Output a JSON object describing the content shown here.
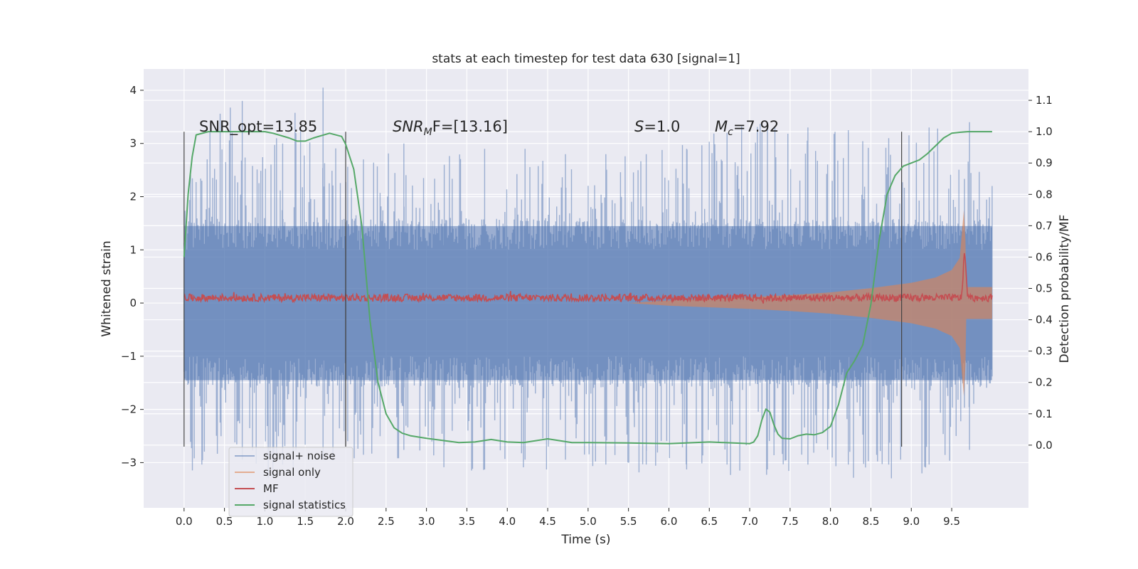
{
  "chart_data": {
    "type": "line",
    "title": "stats at each timestep for test data 630 [signal=1]",
    "xlabel": "Time (s)",
    "ylabel": "Whitened strain",
    "y2label": "Detection probability/MF",
    "xlim": [
      -0.5,
      10.45
    ],
    "ylim": [
      -3.85,
      4.4
    ],
    "y2lim": [
      -0.2,
      1.2
    ],
    "x_ticks": [
      "0.0",
      "0.5",
      "1.0",
      "1.5",
      "2.0",
      "2.5",
      "3.0",
      "3.5",
      "4.0",
      "4.5",
      "5.0",
      "5.5",
      "6.0",
      "6.5",
      "7.0",
      "7.5",
      "8.0",
      "8.5",
      "9.0",
      "9.5"
    ],
    "y_ticks": [
      "4",
      "3",
      "2",
      "1",
      "0",
      "−1",
      "−2",
      "−3"
    ],
    "y_tick_values": [
      4,
      3,
      2,
      1,
      0,
      -1,
      -2,
      -3
    ],
    "y2_ticks": [
      "1.1",
      "1.0",
      "0.9",
      "0.8",
      "0.7",
      "0.6",
      "0.5",
      "0.4",
      "0.3",
      "0.2",
      "0.1",
      "0.0"
    ],
    "y2_tick_values": [
      1.1,
      1.0,
      0.9,
      0.8,
      0.7,
      0.6,
      0.5,
      0.4,
      0.3,
      0.2,
      0.1,
      0.0
    ],
    "grid": true,
    "legend_position": "bottom-left",
    "annotations": {
      "snr_opt": "SNR_opt=13.85",
      "snr_mf_pre": "SNR",
      "snr_mf_sub": "M",
      "snr_mf_post": "F=[13.16]",
      "s_var": "S",
      "s_val": "=1.0",
      "mc_var": "M",
      "mc_sub": "c",
      "mc_val": "=7.92"
    },
    "vlines": [
      {
        "x": 0.0,
        "ymin": -2.7,
        "ymax": 3.22
      },
      {
        "x": 2.0,
        "ymin": -2.7,
        "ymax": 1.52
      },
      {
        "x": 2.0,
        "ymin": -2.7,
        "ymax": 3.22
      },
      {
        "x": 8.88,
        "ymin": -2.7,
        "ymax": 3.22
      }
    ],
    "series": [
      {
        "name": "signal+ noise",
        "color": "#4c72b0",
        "opacity": 0.5,
        "axis": "left",
        "x_range": [
          0.0,
          10.0
        ],
        "envelope_x": [
          0.0,
          0.5,
          1.0,
          1.5,
          2.0,
          2.5,
          3.0,
          3.5,
          4.0,
          4.5,
          5.0,
          5.5,
          6.0,
          6.5,
          7.0,
          7.5,
          8.0,
          8.5,
          9.0,
          9.5,
          10.0
        ],
        "envelope_y_max": [
          2.3,
          3.8,
          3.0,
          4.05,
          2.7,
          3.0,
          2.6,
          2.9,
          2.9,
          2.8,
          2.8,
          2.8,
          2.9,
          3.2,
          3.4,
          3.3,
          3.25,
          3.1,
          3.3,
          3.4,
          2.2
        ],
        "envelope_y_min": [
          -3.3,
          -3.2,
          -3.3,
          -3.2,
          -3.1,
          -3.0,
          -2.9,
          -3.4,
          -3.2,
          -3.2,
          -3.3,
          -3.3,
          -3.4,
          -3.3,
          -3.4,
          -3.3,
          -3.3,
          -3.3,
          -3.3,
          -3.0,
          -1.5
        ],
        "dense_band": [
          -1.45,
          1.45
        ]
      },
      {
        "name": "signal only",
        "color": "#dd8452",
        "opacity": 0.6,
        "axis": "left",
        "envelope_x": [
          5.5,
          6.0,
          6.5,
          7.0,
          7.5,
          8.0,
          8.5,
          9.0,
          9.3,
          9.5,
          9.6,
          9.65,
          9.7,
          10.0
        ],
        "envelope_amp": [
          0.0,
          0.05,
          0.08,
          0.11,
          0.15,
          0.2,
          0.28,
          0.38,
          0.48,
          0.62,
          0.85,
          1.75,
          0.3,
          0.3
        ]
      },
      {
        "name": "MF",
        "color": "#c44e52",
        "axis": "right",
        "baseline": 0.47,
        "noise": 0.012,
        "peak": {
          "x": 9.66,
          "y": 0.62
        }
      },
      {
        "name": "signal statistics",
        "color": "#55a868",
        "axis": "right",
        "x": [
          0.0,
          0.05,
          0.1,
          0.15,
          0.3,
          0.5,
          0.8,
          1.0,
          1.1,
          1.3,
          1.4,
          1.5,
          1.6,
          1.8,
          1.95,
          2.0,
          2.1,
          2.2,
          2.3,
          2.4,
          2.5,
          2.6,
          2.7,
          2.8,
          3.0,
          3.2,
          3.4,
          3.6,
          3.8,
          4.0,
          4.2,
          4.5,
          4.8,
          5.0,
          5.5,
          6.0,
          6.5,
          7.0,
          7.05,
          7.1,
          7.15,
          7.2,
          7.25,
          7.3,
          7.35,
          7.4,
          7.5,
          7.6,
          7.7,
          7.8,
          7.9,
          8.0,
          8.1,
          8.2,
          8.3,
          8.4,
          8.5,
          8.6,
          8.7,
          8.8,
          8.9,
          9.0,
          9.1,
          9.2,
          9.3,
          9.4,
          9.5,
          9.6,
          9.7,
          9.8,
          9.9,
          10.0
        ],
        "y": [
          0.6,
          0.8,
          0.92,
          0.99,
          1.0,
          1.0,
          1.0,
          1.0,
          0.995,
          0.98,
          0.97,
          0.97,
          0.98,
          0.995,
          0.985,
          0.96,
          0.88,
          0.7,
          0.4,
          0.2,
          0.1,
          0.055,
          0.038,
          0.03,
          0.022,
          0.015,
          0.008,
          0.01,
          0.018,
          0.01,
          0.008,
          0.02,
          0.008,
          0.008,
          0.007,
          0.005,
          0.01,
          0.005,
          0.01,
          0.03,
          0.08,
          0.115,
          0.105,
          0.065,
          0.035,
          0.022,
          0.02,
          0.03,
          0.035,
          0.033,
          0.04,
          0.06,
          0.13,
          0.23,
          0.27,
          0.32,
          0.45,
          0.65,
          0.8,
          0.86,
          0.89,
          0.9,
          0.91,
          0.93,
          0.955,
          0.98,
          0.995,
          0.998,
          1.0,
          1.0,
          1.0,
          1.0
        ]
      }
    ]
  }
}
